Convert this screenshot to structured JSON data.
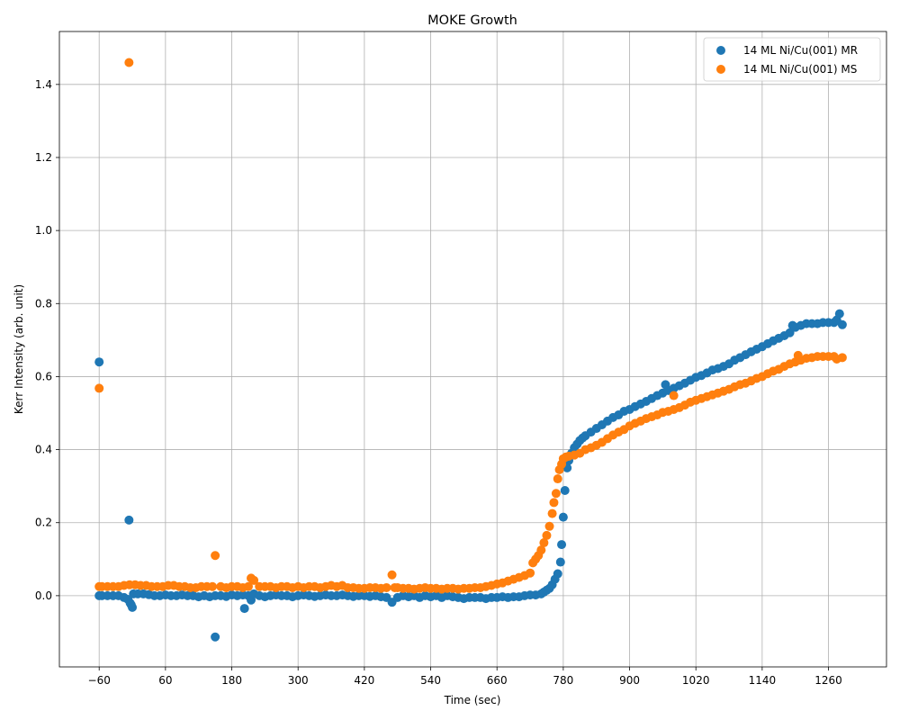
{
  "chart_data": {
    "type": "scatter",
    "title": "MOKE Growth",
    "xlabel": "Time (sec)",
    "ylabel": "Kerr Intensity (arb. unit)",
    "xlim": [
      -132,
      1365
    ],
    "ylim": [
      -0.195,
      1.545
    ],
    "xticks": [
      -60,
      60,
      180,
      300,
      420,
      540,
      660,
      780,
      900,
      1020,
      1140,
      1260
    ],
    "xtick_labels": [
      "−60",
      "60",
      "180",
      "300",
      "420",
      "540",
      "660",
      "780",
      "900",
      "1020",
      "1140",
      "1260"
    ],
    "yticks": [
      0.0,
      0.2,
      0.4,
      0.6,
      0.8,
      1.0,
      1.2,
      1.4
    ],
    "ytick_labels": [
      "0.0",
      "0.2",
      "0.4",
      "0.6",
      "0.8",
      "1.0",
      "1.2",
      "1.4"
    ],
    "grid": true,
    "legend_position": "top-right",
    "series": [
      {
        "name": "14 ML Ni/Cu(001) MR",
        "color": "#1f77b4",
        "points": [
          [
            -60,
            0.64
          ],
          [
            -60,
            0.0
          ],
          [
            -55,
            0.0
          ],
          [
            -45,
            0.0
          ],
          [
            -35,
            0.0
          ],
          [
            -25,
            0.0
          ],
          [
            -15,
            -0.005
          ],
          [
            -8,
            -0.01
          ],
          [
            -6,
            0.207
          ],
          [
            -4,
            -0.02
          ],
          [
            -2,
            -0.025
          ],
          [
            0,
            -0.032
          ],
          [
            2,
            0.005
          ],
          [
            10,
            0.005
          ],
          [
            20,
            0.005
          ],
          [
            30,
            0.003
          ],
          [
            40,
            0.0
          ],
          [
            50,
            0.0
          ],
          [
            60,
            0.002
          ],
          [
            70,
            0.0
          ],
          [
            80,
            0.0
          ],
          [
            90,
            0.002
          ],
          [
            100,
            0.0
          ],
          [
            110,
            0.0
          ],
          [
            120,
            -0.003
          ],
          [
            130,
            0.0
          ],
          [
            140,
            -0.003
          ],
          [
            150,
            0.0
          ],
          [
            150,
            -0.113
          ],
          [
            160,
            0.0
          ],
          [
            170,
            -0.002
          ],
          [
            180,
            0.002
          ],
          [
            190,
            0.0
          ],
          [
            200,
            0.002
          ],
          [
            203,
            -0.035
          ],
          [
            210,
            0.0
          ],
          [
            215,
            -0.012
          ],
          [
            220,
            0.005
          ],
          [
            230,
            0.0
          ],
          [
            240,
            -0.003
          ],
          [
            250,
            0.0
          ],
          [
            260,
            0.002
          ],
          [
            270,
            0.0
          ],
          [
            280,
            0.0
          ],
          [
            290,
            -0.003
          ],
          [
            300,
            0.0
          ],
          [
            310,
            0.002
          ],
          [
            320,
            0.0
          ],
          [
            330,
            -0.002
          ],
          [
            340,
            0.0
          ],
          [
            350,
            0.002
          ],
          [
            360,
            0.0
          ],
          [
            370,
            0.0
          ],
          [
            380,
            0.002
          ],
          [
            390,
            0.0
          ],
          [
            400,
            -0.002
          ],
          [
            410,
            0.0
          ],
          [
            420,
            0.0
          ],
          [
            430,
            -0.002
          ],
          [
            440,
            0.0
          ],
          [
            450,
            -0.003
          ],
          [
            460,
            -0.005
          ],
          [
            470,
            -0.018
          ],
          [
            480,
            -0.005
          ],
          [
            490,
            0.0
          ],
          [
            500,
            -0.003
          ],
          [
            510,
            0.0
          ],
          [
            520,
            -0.005
          ],
          [
            530,
            0.0
          ],
          [
            540,
            -0.003
          ],
          [
            550,
            0.0
          ],
          [
            560,
            -0.005
          ],
          [
            570,
            0.0
          ],
          [
            580,
            -0.003
          ],
          [
            590,
            -0.005
          ],
          [
            600,
            -0.008
          ],
          [
            610,
            -0.005
          ],
          [
            620,
            -0.005
          ],
          [
            630,
            -0.005
          ],
          [
            640,
            -0.008
          ],
          [
            650,
            -0.005
          ],
          [
            660,
            -0.005
          ],
          [
            670,
            -0.003
          ],
          [
            680,
            -0.005
          ],
          [
            690,
            -0.003
          ],
          [
            700,
            -0.003
          ],
          [
            710,
            0.0
          ],
          [
            720,
            0.002
          ],
          [
            730,
            0.002
          ],
          [
            740,
            0.005
          ],
          [
            745,
            0.01
          ],
          [
            750,
            0.015
          ],
          [
            755,
            0.02
          ],
          [
            760,
            0.03
          ],
          [
            765,
            0.045
          ],
          [
            770,
            0.06
          ],
          [
            775,
            0.092
          ],
          [
            777,
            0.14
          ],
          [
            780,
            0.215
          ],
          [
            783,
            0.288
          ],
          [
            787,
            0.35
          ],
          [
            790,
            0.37
          ],
          [
            795,
            0.39
          ],
          [
            800,
            0.405
          ],
          [
            805,
            0.415
          ],
          [
            810,
            0.425
          ],
          [
            815,
            0.432
          ],
          [
            820,
            0.438
          ],
          [
            830,
            0.448
          ],
          [
            840,
            0.458
          ],
          [
            850,
            0.468
          ],
          [
            860,
            0.478
          ],
          [
            870,
            0.488
          ],
          [
            880,
            0.495
          ],
          [
            890,
            0.505
          ],
          [
            900,
            0.51
          ],
          [
            910,
            0.518
          ],
          [
            920,
            0.525
          ],
          [
            930,
            0.532
          ],
          [
            940,
            0.54
          ],
          [
            950,
            0.548
          ],
          [
            960,
            0.555
          ],
          [
            965,
            0.578
          ],
          [
            970,
            0.562
          ],
          [
            980,
            0.568
          ],
          [
            990,
            0.575
          ],
          [
            1000,
            0.582
          ],
          [
            1010,
            0.59
          ],
          [
            1020,
            0.598
          ],
          [
            1030,
            0.603
          ],
          [
            1040,
            0.61
          ],
          [
            1050,
            0.618
          ],
          [
            1060,
            0.622
          ],
          [
            1070,
            0.628
          ],
          [
            1080,
            0.635
          ],
          [
            1090,
            0.645
          ],
          [
            1100,
            0.652
          ],
          [
            1110,
            0.66
          ],
          [
            1120,
            0.668
          ],
          [
            1130,
            0.675
          ],
          [
            1140,
            0.682
          ],
          [
            1150,
            0.69
          ],
          [
            1160,
            0.698
          ],
          [
            1170,
            0.705
          ],
          [
            1180,
            0.712
          ],
          [
            1190,
            0.72
          ],
          [
            1195,
            0.74
          ],
          [
            1200,
            0.735
          ],
          [
            1210,
            0.74
          ],
          [
            1220,
            0.745
          ],
          [
            1230,
            0.745
          ],
          [
            1240,
            0.745
          ],
          [
            1250,
            0.748
          ],
          [
            1260,
            0.748
          ],
          [
            1270,
            0.748
          ],
          [
            1275,
            0.755
          ],
          [
            1280,
            0.772
          ],
          [
            1285,
            0.742
          ]
        ]
      },
      {
        "name": "14 ML Ni/Cu(001) MS",
        "color": "#ff7f0e",
        "points": [
          [
            -60,
            0.568
          ],
          [
            -60,
            0.025
          ],
          [
            -55,
            0.025
          ],
          [
            -45,
            0.025
          ],
          [
            -35,
            0.025
          ],
          [
            -25,
            0.025
          ],
          [
            -15,
            0.028
          ],
          [
            -5,
            0.03
          ],
          [
            -6,
            1.46
          ],
          [
            5,
            0.03
          ],
          [
            15,
            0.028
          ],
          [
            25,
            0.028
          ],
          [
            35,
            0.025
          ],
          [
            45,
            0.025
          ],
          [
            55,
            0.025
          ],
          [
            65,
            0.028
          ],
          [
            75,
            0.028
          ],
          [
            85,
            0.025
          ],
          [
            95,
            0.025
          ],
          [
            105,
            0.022
          ],
          [
            115,
            0.022
          ],
          [
            125,
            0.025
          ],
          [
            135,
            0.025
          ],
          [
            145,
            0.025
          ],
          [
            150,
            0.11
          ],
          [
            160,
            0.025
          ],
          [
            170,
            0.022
          ],
          [
            180,
            0.025
          ],
          [
            190,
            0.025
          ],
          [
            200,
            0.022
          ],
          [
            210,
            0.025
          ],
          [
            215,
            0.048
          ],
          [
            220,
            0.042
          ],
          [
            230,
            0.025
          ],
          [
            240,
            0.025
          ],
          [
            250,
            0.025
          ],
          [
            260,
            0.022
          ],
          [
            270,
            0.025
          ],
          [
            280,
            0.025
          ],
          [
            290,
            0.022
          ],
          [
            300,
            0.025
          ],
          [
            310,
            0.022
          ],
          [
            320,
            0.025
          ],
          [
            330,
            0.025
          ],
          [
            340,
            0.022
          ],
          [
            350,
            0.025
          ],
          [
            360,
            0.028
          ],
          [
            370,
            0.025
          ],
          [
            380,
            0.028
          ],
          [
            390,
            0.022
          ],
          [
            400,
            0.022
          ],
          [
            410,
            0.02
          ],
          [
            420,
            0.02
          ],
          [
            430,
            0.022
          ],
          [
            440,
            0.022
          ],
          [
            450,
            0.02
          ],
          [
            460,
            0.022
          ],
          [
            470,
            0.057
          ],
          [
            475,
            0.022
          ],
          [
            480,
            0.022
          ],
          [
            490,
            0.02
          ],
          [
            500,
            0.02
          ],
          [
            510,
            0.018
          ],
          [
            520,
            0.02
          ],
          [
            530,
            0.022
          ],
          [
            540,
            0.02
          ],
          [
            550,
            0.02
          ],
          [
            560,
            0.018
          ],
          [
            570,
            0.02
          ],
          [
            580,
            0.02
          ],
          [
            590,
            0.018
          ],
          [
            600,
            0.02
          ],
          [
            610,
            0.02
          ],
          [
            620,
            0.022
          ],
          [
            630,
            0.022
          ],
          [
            640,
            0.025
          ],
          [
            650,
            0.028
          ],
          [
            660,
            0.032
          ],
          [
            670,
            0.035
          ],
          [
            680,
            0.04
          ],
          [
            690,
            0.045
          ],
          [
            700,
            0.05
          ],
          [
            710,
            0.055
          ],
          [
            720,
            0.062
          ],
          [
            725,
            0.09
          ],
          [
            730,
            0.1
          ],
          [
            735,
            0.11
          ],
          [
            740,
            0.125
          ],
          [
            745,
            0.145
          ],
          [
            750,
            0.165
          ],
          [
            755,
            0.19
          ],
          [
            760,
            0.225
          ],
          [
            763,
            0.255
          ],
          [
            767,
            0.28
          ],
          [
            770,
            0.32
          ],
          [
            773,
            0.345
          ],
          [
            777,
            0.36
          ],
          [
            780,
            0.375
          ],
          [
            785,
            0.38
          ],
          [
            790,
            0.382
          ],
          [
            800,
            0.385
          ],
          [
            810,
            0.39
          ],
          [
            820,
            0.4
          ],
          [
            830,
            0.405
          ],
          [
            840,
            0.412
          ],
          [
            850,
            0.42
          ],
          [
            860,
            0.43
          ],
          [
            870,
            0.44
          ],
          [
            880,
            0.448
          ],
          [
            890,
            0.455
          ],
          [
            900,
            0.465
          ],
          [
            910,
            0.472
          ],
          [
            920,
            0.478
          ],
          [
            930,
            0.485
          ],
          [
            940,
            0.49
          ],
          [
            950,
            0.495
          ],
          [
            960,
            0.502
          ],
          [
            970,
            0.505
          ],
          [
            980,
            0.51
          ],
          [
            980,
            0.548
          ],
          [
            990,
            0.515
          ],
          [
            1000,
            0.522
          ],
          [
            1010,
            0.53
          ],
          [
            1020,
            0.535
          ],
          [
            1030,
            0.54
          ],
          [
            1040,
            0.545
          ],
          [
            1050,
            0.55
          ],
          [
            1060,
            0.555
          ],
          [
            1070,
            0.56
          ],
          [
            1080,
            0.565
          ],
          [
            1090,
            0.572
          ],
          [
            1100,
            0.578
          ],
          [
            1110,
            0.582
          ],
          [
            1120,
            0.588
          ],
          [
            1130,
            0.595
          ],
          [
            1140,
            0.6
          ],
          [
            1150,
            0.608
          ],
          [
            1160,
            0.615
          ],
          [
            1170,
            0.62
          ],
          [
            1180,
            0.628
          ],
          [
            1190,
            0.635
          ],
          [
            1200,
            0.64
          ],
          [
            1205,
            0.658
          ],
          [
            1210,
            0.645
          ],
          [
            1220,
            0.65
          ],
          [
            1230,
            0.652
          ],
          [
            1240,
            0.655
          ],
          [
            1250,
            0.655
          ],
          [
            1260,
            0.655
          ],
          [
            1270,
            0.655
          ],
          [
            1275,
            0.648
          ],
          [
            1285,
            0.652
          ]
        ]
      }
    ]
  }
}
